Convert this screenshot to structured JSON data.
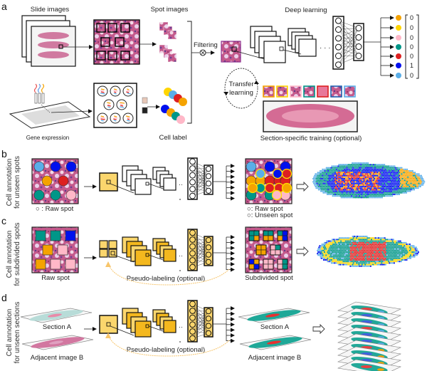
{
  "panels": {
    "a": {
      "letter": "a",
      "slide_images": "Slide images",
      "spot_images": "Spot images",
      "deep_learning": "Deep learning",
      "filtering": "Filtering",
      "transfer_line1": "Transfer",
      "transfer_line2": "learning",
      "gene_expression": "Gene expression",
      "cell_label": "Cell label",
      "section_specific": "Section-specific training (optional)",
      "output_vector": [
        "0",
        "0",
        "0",
        "0",
        "0",
        "1",
        "0"
      ]
    },
    "b": {
      "letter": "b",
      "side_line1": "Cell annotation",
      "side_line2": "for unseen spots",
      "raw_spot_legend": "○ : Raw spot",
      "result_raw_legend": "○: Raw spot",
      "result_unseen_legend": "○: Unseen spot"
    },
    "c": {
      "letter": "c",
      "side_line1": "Cell annotation",
      "side_line2": "for subdivided spots",
      "raw_spot": "Raw spot",
      "pseudo_labeling": "Pseudo-labeling (optional)",
      "subdivided_spot": "Subdivided spot"
    },
    "d": {
      "letter": "d",
      "side_line1": "Cell annotation",
      "side_line2": "for unseen sections",
      "section_a": "Section A",
      "adjacent_b": "Adjacent image B",
      "pseudo_labeling": "Pseudo-labeling (optional)",
      "section_a_result": "Section A",
      "adjacent_b_result": "Adjacent image B"
    }
  },
  "colors": {
    "cell_types": [
      "#f5a300",
      "#ffd500",
      "#ffb8c8",
      "#009688",
      "#dd2020",
      "#0010ee",
      "#5aaee8"
    ],
    "network_fill": "#fbd66d",
    "network_fill_dark": "#f4b81e",
    "tissue": "#c9608f",
    "pseudo_arrow": "#f7c56b"
  }
}
